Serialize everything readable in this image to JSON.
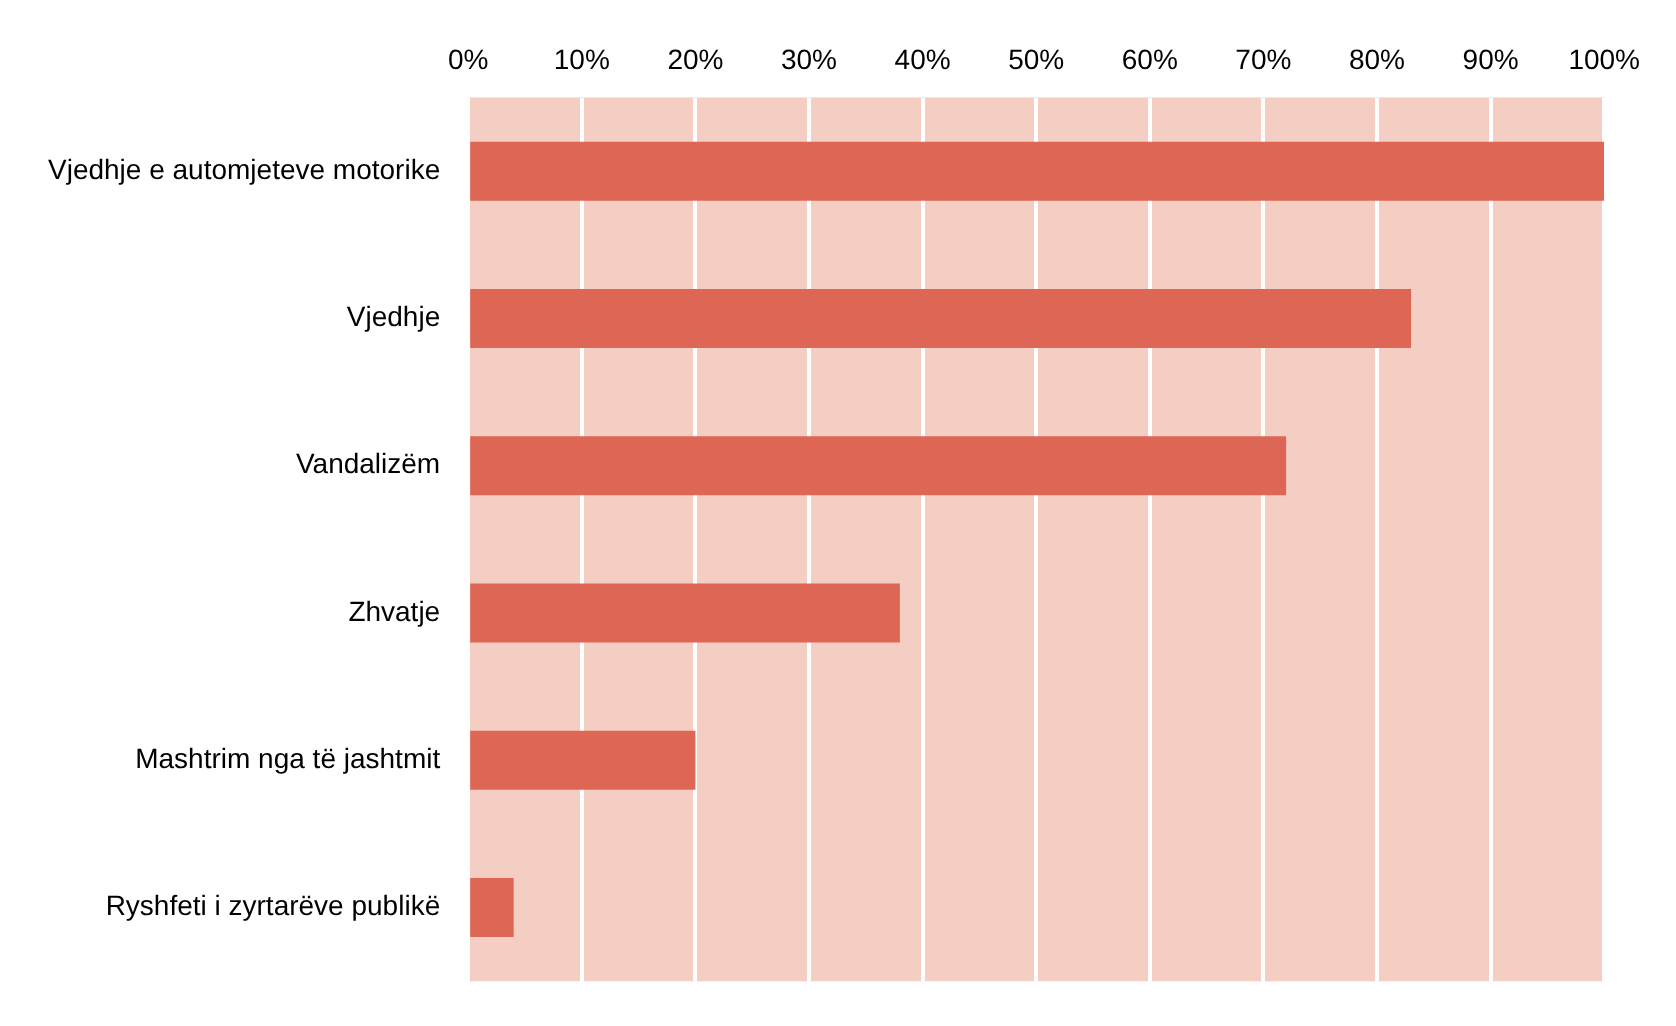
{
  "chart_data": {
    "type": "bar",
    "orientation": "horizontal",
    "categories": [
      "Vjedhje e automjeteve motorike",
      "Vjedhje",
      "Vandalizëm",
      "Zhvatje",
      "Mashtrim nga të jashtmit",
      "Ryshfeti i zyrtarëve publikë"
    ],
    "values": [
      100,
      83,
      72,
      38,
      20,
      4
    ],
    "color": "#dd6655",
    "xlim": [
      0,
      100
    ],
    "xticks": [
      {
        "value": 0,
        "label": "0%"
      },
      {
        "value": 10,
        "label": "10%"
      },
      {
        "value": 20,
        "label": "20%"
      },
      {
        "value": 30,
        "label": "30%"
      },
      {
        "value": 40,
        "label": "40%"
      },
      {
        "value": 50,
        "label": "50%"
      },
      {
        "value": 60,
        "label": "60%"
      },
      {
        "value": 70,
        "label": "70%"
      },
      {
        "value": 80,
        "label": "80%"
      },
      {
        "value": 90,
        "label": "90%"
      },
      {
        "value": 100,
        "label": "100%"
      }
    ],
    "grid": "x",
    "legend": false
  }
}
